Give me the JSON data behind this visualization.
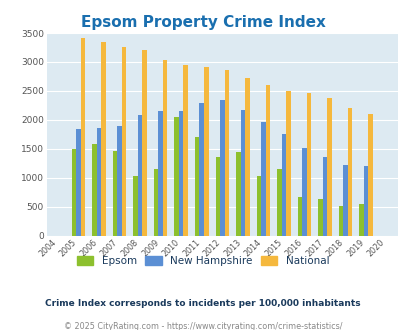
{
  "title": "Epsom Property Crime Index",
  "years": [
    "2004",
    "2005",
    "2006",
    "2007",
    "2008",
    "2009",
    "2010",
    "2011",
    "2012",
    "2013",
    "2014",
    "2015",
    "2016",
    "2017",
    "2018",
    "2019",
    "2020"
  ],
  "epsom": [
    0,
    1500,
    1580,
    1470,
    1040,
    1150,
    2050,
    1700,
    1360,
    1450,
    1040,
    1150,
    670,
    640,
    525,
    545,
    0
  ],
  "new_hampshire": [
    0,
    1840,
    1860,
    1900,
    2090,
    2150,
    2150,
    2290,
    2350,
    2180,
    1960,
    1760,
    1510,
    1370,
    1230,
    1210,
    0
  ],
  "national": [
    0,
    3420,
    3340,
    3260,
    3210,
    3040,
    2950,
    2910,
    2860,
    2730,
    2600,
    2500,
    2470,
    2380,
    2210,
    2110,
    0
  ],
  "epsom_color": "#8dc02e",
  "nh_color": "#5b8fd4",
  "national_color": "#f5b83d",
  "plot_bg": "#ddeaf2",
  "fig_bg": "#ffffff",
  "ylim": [
    0,
    3500
  ],
  "yticks": [
    0,
    500,
    1000,
    1500,
    2000,
    2500,
    3000,
    3500
  ],
  "title_color": "#1a6faf",
  "title_fontsize": 11,
  "footer1": "Crime Index corresponds to incidents per 100,000 inhabitants",
  "footer2": "© 2025 CityRating.com - https://www.cityrating.com/crime-statistics/",
  "footer1_color": "#1a3a5c",
  "footer2_color": "#888888",
  "legend_labels": [
    "Epsom",
    "New Hampshire",
    "National"
  ],
  "legend_text_color": "#1a3a5c"
}
